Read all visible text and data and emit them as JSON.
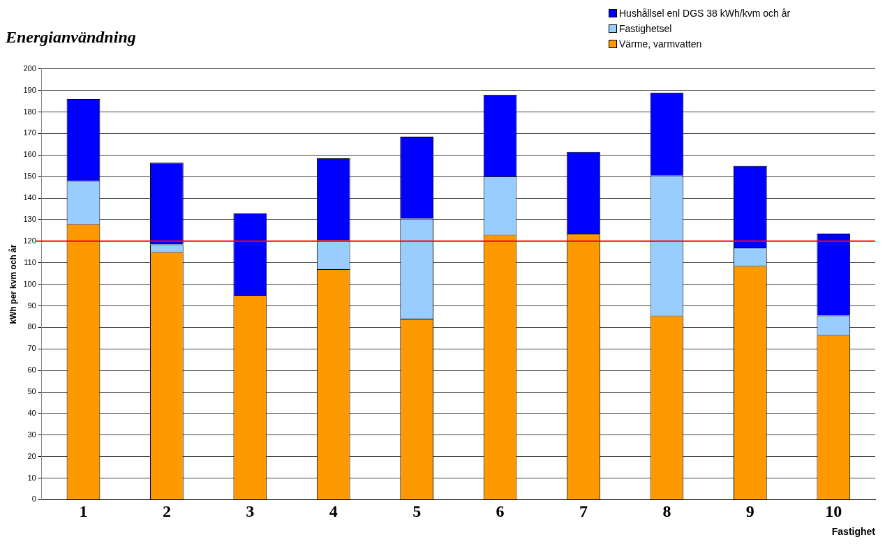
{
  "chart_data": {
    "type": "bar",
    "title": "Energianvändning",
    "xlabel": "Fastighet",
    "ylabel": "kWh per kvm och år",
    "categories": [
      "1",
      "2",
      "3",
      "4",
      "5",
      "6",
      "7",
      "8",
      "9",
      "10"
    ],
    "stacked": true,
    "series": [
      {
        "name": "Värme, varmvatten",
        "color": "#ff9900",
        "values": [
          128,
          115,
          95,
          107,
          84,
          123,
          123.5,
          85.5,
          108.5,
          76.5
        ]
      },
      {
        "name": "Fastighetsel",
        "color": "#99ccff",
        "values": [
          20,
          3.5,
          0,
          13.5,
          46.5,
          27,
          0,
          65,
          8.5,
          9
        ]
      },
      {
        "name": "Hushållsel enl DGS 38 kWh/kvm och år",
        "color": "#0000ff",
        "values": [
          38,
          38,
          38,
          38,
          38,
          38,
          38,
          38.5,
          38,
          38
        ]
      }
    ],
    "ylim": [
      0,
      200
    ],
    "yticks": [
      0,
      10,
      20,
      30,
      40,
      50,
      60,
      70,
      80,
      90,
      100,
      110,
      120,
      130,
      140,
      150,
      160,
      170,
      180,
      190,
      200
    ],
    "grid": "y",
    "legend": "top right",
    "ref_lines": [
      {
        "axis": "y",
        "value": 120,
        "color": "#ff0000"
      }
    ]
  }
}
